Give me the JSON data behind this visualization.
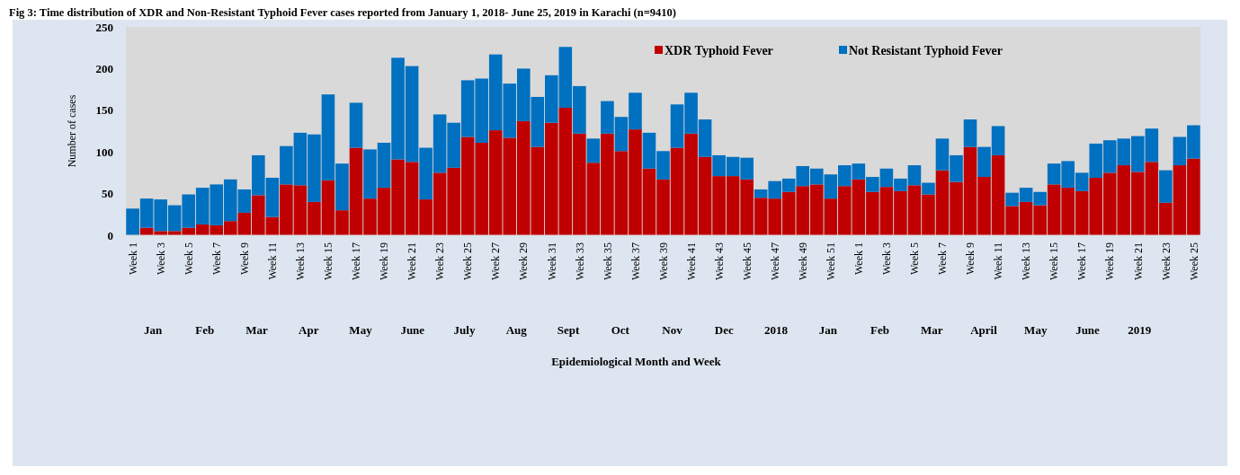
{
  "chart_data": {
    "type": "bar",
    "stacked": true,
    "title": "Fig 3: Time distribution of XDR and Non-Resistant Typhoid Fever cases reported from January 1, 2018- June 25, 2019 in Karachi (n=9410)",
    "ylabel": "Number of cases",
    "categories": [
      "Week 1",
      null,
      "Week 3",
      null,
      "Week 5",
      null,
      "Week 7",
      null,
      "Week 9",
      null,
      "Week 11",
      null,
      "Week 13",
      null,
      "Week 15",
      null,
      "Week 17",
      null,
      "Week 19",
      null,
      "Week 21",
      null,
      "Week 23",
      null,
      "Week 25",
      null,
      "Week 27",
      null,
      "Week 29",
      null,
      "Week 31",
      null,
      "Week 33",
      null,
      "Week 35",
      null,
      "Week 37",
      null,
      "Week 39",
      null,
      "Week 41",
      null,
      "Week 43",
      null,
      "Week 45",
      null,
      "Week 47",
      null,
      "Week 49",
      null,
      "Week 51",
      null,
      "Week 1",
      null,
      "Week 3",
      null,
      "Week 5",
      null,
      "Week 7",
      null,
      "Week 9",
      null,
      "Week 11",
      null,
      "Week 13",
      null,
      "Week 15",
      null,
      "Week 17",
      null,
      "Week 19",
      null,
      "Week 21",
      null,
      "Week 23",
      null,
      "Week 25"
    ],
    "series": [
      {
        "name": "XDR Typhoid Fever",
        "color": "#c00000",
        "values": [
          0,
          9,
          5,
          5,
          9,
          13,
          12,
          17,
          27,
          48,
          22,
          61,
          60,
          40,
          66,
          30,
          105,
          44,
          57,
          91,
          88,
          43,
          75,
          81,
          118,
          111,
          126,
          117,
          137,
          106,
          135,
          153,
          122,
          87,
          122,
          101,
          127,
          80,
          67,
          105,
          122,
          94,
          71,
          71,
          67,
          45,
          44,
          52,
          59,
          61,
          44,
          59,
          67,
          52,
          58,
          53,
          60,
          49,
          78,
          64,
          106,
          70,
          96,
          35,
          40,
          36,
          61,
          57,
          53,
          69,
          75,
          84,
          76,
          88,
          39,
          84,
          92
        ]
      },
      {
        "name": "Not Resistant Typhoid Fever",
        "color": "#0070c0",
        "values": [
          32,
          35,
          38,
          31,
          40,
          44,
          49,
          50,
          28,
          48,
          47,
          46,
          63,
          81,
          103,
          56,
          54,
          59,
          54,
          122,
          115,
          62,
          70,
          54,
          68,
          77,
          91,
          65,
          63,
          60,
          57,
          73,
          57,
          29,
          39,
          41,
          44,
          43,
          34,
          52,
          49,
          45,
          25,
          23,
          26,
          10,
          21,
          16,
          24,
          19,
          29,
          25,
          19,
          18,
          22,
          15,
          24,
          14,
          38,
          32,
          33,
          36,
          35,
          16,
          17,
          16,
          25,
          32,
          22,
          41,
          39,
          32,
          43,
          40,
          39,
          34,
          40
        ]
      }
    ],
    "ylim": [
      0,
      250
    ],
    "yticks": [
      0,
      50,
      100,
      150,
      200,
      250
    ],
    "grid": false,
    "legend": "top right",
    "annotations": [
      "Jan",
      "Feb",
      "Mar",
      "Apr",
      "May",
      "June",
      "July",
      "Aug",
      "Sept",
      "Oct",
      "Nov",
      "Dec",
      "2018",
      "Jan",
      "Feb",
      "Mar",
      "April",
      "May",
      "June",
      "2019",
      "Epidemiological Month and Week"
    ]
  }
}
